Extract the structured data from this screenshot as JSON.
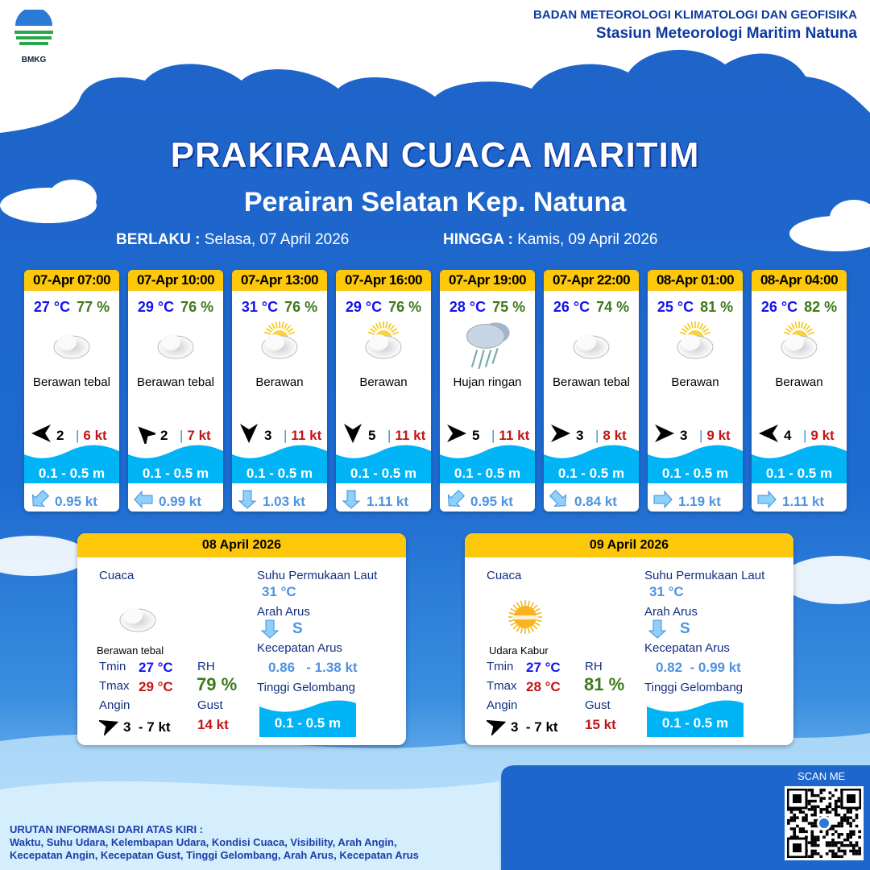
{
  "header": {
    "org": "BADAN METEOROLOGI KLIMATOLOGI DAN GEOFISIKA",
    "station": "Stasiun Meteorologi Maritim Natuna",
    "logo_text": "BMKG"
  },
  "title": "PRAKIRAAN CUACA MARITIM",
  "subtitle": "Perairan Selatan Kep. Natuna",
  "validity": {
    "from_label": "BERLAKU :",
    "from": "Selasa, 07 April 2026",
    "to_label": "HINGGA :",
    "to": "Kamis, 09 April 2026"
  },
  "forecasts": [
    {
      "time": "07-Apr 07:00",
      "temp": "27 °C",
      "rh": "77 %",
      "weather": "Berawan tebal",
      "icon": "overcast-cloud-icon",
      "wind_dir_deg": 180,
      "wind": "2",
      "gust": "6 kt",
      "wave": "0.1 - 0.5 m",
      "current_dir_deg": 135,
      "current": "0.95 kt"
    },
    {
      "time": "07-Apr 10:00",
      "temp": "29 °C",
      "rh": "76 %",
      "weather": "Berawan tebal",
      "icon": "overcast-cloud-icon",
      "wind_dir_deg": 225,
      "wind": "2",
      "gust": "7 kt",
      "wave": "0.1 - 0.5 m",
      "current_dir_deg": 180,
      "current": "0.99 kt"
    },
    {
      "time": "07-Apr 13:00",
      "temp": "31 °C",
      "rh": "76 %",
      "weather": "Berawan",
      "icon": "sun-cloud-icon",
      "wind_dir_deg": 90,
      "wind": "3",
      "gust": "11 kt",
      "wave": "0.1 - 0.5 m",
      "current_dir_deg": 90,
      "current": "1.03 kt"
    },
    {
      "time": "07-Apr 16:00",
      "temp": "29 °C",
      "rh": "76 %",
      "weather": "Berawan",
      "icon": "sun-cloud-icon",
      "wind_dir_deg": 90,
      "wind": "5",
      "gust": "11 kt",
      "wave": "0.1 - 0.5 m",
      "current_dir_deg": 90,
      "current": "1.11 kt"
    },
    {
      "time": "07-Apr 19:00",
      "temp": "28 °C",
      "rh": "75 %",
      "weather": "Hujan ringan",
      "icon": "rain-cloud-icon",
      "wind_dir_deg": 0,
      "wind": "5",
      "gust": "11 kt",
      "wave": "0.1 - 0.5 m",
      "current_dir_deg": 135,
      "current": "0.95 kt"
    },
    {
      "time": "07-Apr 22:00",
      "temp": "26 °C",
      "rh": "74 %",
      "weather": "Berawan tebal",
      "icon": "overcast-cloud-icon",
      "wind_dir_deg": 0,
      "wind": "3",
      "gust": "8 kt",
      "wave": "0.1 - 0.5 m",
      "current_dir_deg": 45,
      "current": "0.84 kt"
    },
    {
      "time": "08-Apr 01:00",
      "temp": "25 °C",
      "rh": "81 %",
      "weather": "Berawan",
      "icon": "sun-cloud-icon",
      "wind_dir_deg": 0,
      "wind": "3",
      "gust": "9 kt",
      "wave": "0.1 - 0.5 m",
      "current_dir_deg": 0,
      "current": "1.19 kt"
    },
    {
      "time": "08-Apr 04:00",
      "temp": "26 °C",
      "rh": "82 %",
      "weather": "Berawan",
      "icon": "sun-cloud-icon",
      "wind_dir_deg": 180,
      "wind": "4",
      "gust": "9 kt",
      "wave": "0.1 - 0.5 m",
      "current_dir_deg": 0,
      "current": "1.11 kt"
    }
  ],
  "labels": {
    "cuaca": "Cuaca",
    "tmin": "Tmin",
    "tmax": "Tmax",
    "rh": "RH",
    "angin": "Angin",
    "gust": "Gust",
    "sst": "Suhu Permukaan Laut",
    "arah_arus": "Arah Arus",
    "kec_arus": "Kecepatan Arus",
    "tinggi": "Tinggi Gelombang"
  },
  "daily": [
    {
      "date": "08 April 2026",
      "weather": "Berawan tebal",
      "icon": "overcast-cloud-icon",
      "tmin": "27 °C",
      "tmax": "29 °C",
      "rh": "79 %",
      "wind": "3  - 7 kt",
      "gust": "14 kt",
      "sst": "31 °C",
      "current_dir": "S",
      "current_speed": "0.86   - 1.38 kt",
      "wave": "0.1 - 0.5 m"
    },
    {
      "date": "09 April 2026",
      "weather": "Udara Kabur",
      "icon": "haze-sun-icon",
      "tmin": "27 °C",
      "tmax": "28 °C",
      "rh": "81 %",
      "wind": "3  - 7 kt",
      "gust": "15 kt",
      "sst": "31 °C",
      "current_dir": "S",
      "current_speed": "0.82  - 0.99 kt",
      "wave": "0.1 - 0.5 m"
    }
  ],
  "footer": {
    "line1": "URUTAN INFORMASI DARI ATAS KIRI :",
    "line2": "Waktu, Suhu Udara, Kelembapan Udara, Kondisi Cuaca, Visibility, Arah Angin,",
    "line3": "Kecepatan Angin, Kecepatan Gust, Tinggi Gelombang, Arah Arus, Kecepatan Arus",
    "scan": "SCAN ME"
  },
  "colors": {
    "header_yellow": "#fdc80b",
    "temp_blue": "#1414f0",
    "rh_green": "#3d7a1a",
    "gust_red": "#c01616",
    "wave_cyan": "#00b4f5"
  }
}
